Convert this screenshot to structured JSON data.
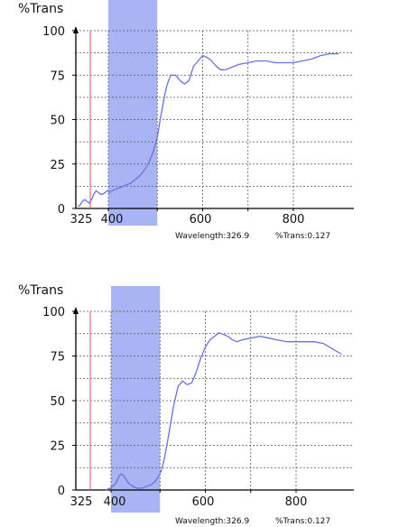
{
  "chart_data": [
    {
      "type": "line",
      "ylabel": "%Trans",
      "xlim": [
        325,
        900
      ],
      "ylim": [
        0,
        100
      ],
      "x_ticks": [
        "325",
        "400",
        "600",
        "800"
      ],
      "y_ticks": [
        "0",
        "25",
        "50",
        "75",
        "100"
      ],
      "highlight_band": [
        400,
        500
      ],
      "marker_x": 326.9,
      "readout": {
        "wavelength": "Wavelength:326.9",
        "trans": "%Trans:0.127"
      },
      "series": [
        {
          "x": [
            325,
            330,
            335,
            340,
            345,
            350,
            355,
            360,
            365,
            370,
            375,
            380,
            385,
            390,
            395,
            400,
            410,
            420,
            430,
            440,
            450,
            460,
            470,
            480,
            490,
            500,
            505,
            510,
            515,
            520,
            525,
            530,
            540,
            550,
            560,
            570,
            580,
            590,
            600,
            610,
            620,
            630,
            640,
            650,
            660,
            670,
            680,
            700,
            720,
            740,
            760,
            780,
            800,
            820,
            840,
            860,
            880,
            900
          ],
          "values": [
            1,
            2,
            4,
            5,
            4,
            3,
            5,
            8,
            10,
            9,
            8,
            8,
            9,
            10,
            9,
            10,
            11,
            12,
            13,
            14,
            16,
            18,
            21,
            25,
            31,
            40,
            48,
            55,
            62,
            68,
            72,
            75,
            75,
            72,
            70,
            72,
            80,
            83,
            86,
            85,
            83,
            80,
            78,
            78,
            79,
            80,
            81,
            82,
            83,
            83,
            82,
            82,
            82,
            83,
            84,
            86,
            87,
            87
          ]
        }
      ]
    },
    {
      "type": "line",
      "ylabel": "%Trans",
      "xlim": [
        325,
        900
      ],
      "ylim": [
        0,
        100
      ],
      "x_ticks": [
        "325",
        "400",
        "600",
        "800"
      ],
      "y_ticks": [
        "0",
        "25",
        "50",
        "75",
        "100"
      ],
      "highlight_band": [
        400,
        500
      ],
      "marker_x": 326.9,
      "readout": {
        "wavelength": "Wavelength:326.9",
        "trans": "%Trans:0.127"
      },
      "series": [
        {
          "x": [
            380,
            390,
            400,
            405,
            410,
            415,
            420,
            425,
            430,
            440,
            450,
            460,
            470,
            480,
            490,
            500,
            505,
            510,
            515,
            520,
            530,
            540,
            550,
            560,
            570,
            580,
            590,
            600,
            610,
            620,
            630,
            640,
            650,
            660,
            670,
            680,
            700,
            720,
            740,
            760,
            780,
            800,
            820,
            840,
            860,
            880,
            900
          ],
          "values": [
            0,
            1,
            3,
            5,
            8,
            9,
            8,
            6,
            4,
            2,
            1,
            1,
            2,
            3,
            5,
            9,
            13,
            18,
            25,
            32,
            47,
            58,
            61,
            59,
            60,
            66,
            74,
            80,
            84,
            86,
            88,
            87,
            86,
            84,
            83,
            84,
            85,
            86,
            85,
            84,
            83,
            83,
            83,
            83,
            82,
            79,
            76
          ]
        }
      ]
    }
  ]
}
